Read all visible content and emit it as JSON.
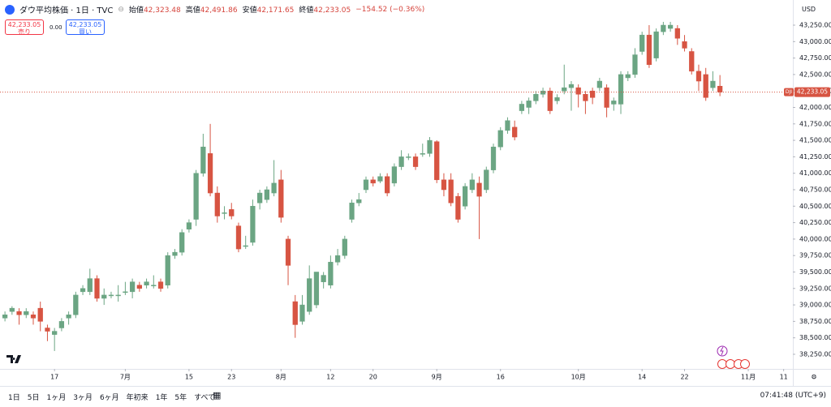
{
  "header": {
    "title": "ダウ平均株価 · 1日 · TVC",
    "ohlc": [
      {
        "label": "始値",
        "value": "42,323.48"
      },
      {
        "label": "高値",
        "value": "42,491.86"
      },
      {
        "label": "安値",
        "value": "42,171.65"
      },
      {
        "label": "終値",
        "value": "42,233.05"
      }
    ],
    "change": "−154.52 (−0.36%)"
  },
  "trade": {
    "sell_price": "42,233.05",
    "sell": "売り",
    "spread": "0.00",
    "buy_price": "42,233.05",
    "buy": "買い"
  },
  "currency": "USD",
  "toolbar": {
    "ranges": [
      "1日",
      "5日",
      "1ヶ月",
      "3ヶ月",
      "6ヶ月",
      "年初来",
      "1年",
      "5年",
      "すべて"
    ],
    "clock": "07:41:48 (UTC+9)"
  },
  "chart_data": {
    "type": "candlestick",
    "open": [
      38800,
      38900,
      38900,
      38850,
      38850,
      38950,
      38650,
      38550,
      38650,
      38800,
      38850,
      39200,
      39200,
      39400,
      39100,
      39150,
      39150,
      39200,
      39200,
      39300,
      39300,
      39300,
      39350,
      39300,
      39750,
      39800,
      40150,
      40300,
      41000,
      41300,
      40700,
      40400,
      40450,
      40200,
      39900,
      39950,
      40550,
      40600,
      40700,
      40900,
      40000,
      39050,
      38750,
      38900,
      39000,
      39350,
      39300,
      39650,
      39750,
      40300,
      40550,
      40750,
      40900,
      40880,
      40950,
      40850,
      41100,
      41250,
      41250,
      41300,
      41300,
      41480,
      40900,
      40900,
      40650,
      40500,
      40750,
      40850,
      40750,
      41050,
      41400,
      41650,
      41700,
      41950,
      42000,
      42100,
      42200,
      42250,
      42100,
      42250,
      42300,
      42300,
      42200,
      42250,
      42300,
      42300,
      42050,
      42050,
      42450,
      42500,
      42850,
      43100,
      42750,
      43150,
      43200,
      43200,
      43000,
      42850,
      42550,
      42500,
      42300,
      42323.48
    ],
    "high": [
      38900,
      38980,
      38950,
      38950,
      38900,
      39050,
      38700,
      38650,
      38800,
      38900,
      39200,
      39300,
      39550,
      39450,
      39250,
      39200,
      39300,
      39350,
      39400,
      39350,
      39400,
      39450,
      39400,
      39800,
      39850,
      40150,
      40300,
      41050,
      41600,
      41750,
      40800,
      40500,
      40550,
      40250,
      40050,
      40600,
      40750,
      40800,
      41200,
      41050,
      40050,
      39150,
      39150,
      39600,
      39500,
      39500,
      39750,
      39850,
      40050,
      40600,
      40700,
      40950,
      40950,
      41000,
      41000,
      41150,
      41350,
      41300,
      41300,
      41450,
      41550,
      41500,
      41000,
      41000,
      40700,
      40850,
      41000,
      40950,
      41100,
      41450,
      41700,
      41850,
      41800,
      42100,
      42150,
      42250,
      42300,
      42300,
      42200,
      42650,
      42400,
      42350,
      42250,
      42300,
      42450,
      42350,
      42150,
      42550,
      42550,
      42900,
      43150,
      43250,
      43200,
      43300,
      43300,
      43250,
      43100,
      42900,
      42650,
      42600,
      42550,
      42491.86
    ],
    "low": [
      38750,
      38850,
      38700,
      38800,
      38700,
      38600,
      38450,
      38300,
      38600,
      38700,
      38800,
      39150,
      39150,
      39050,
      39000,
      39100,
      39050,
      39150,
      39100,
      39200,
      39250,
      39250,
      39200,
      39250,
      39700,
      39750,
      40100,
      40200,
      40950,
      40650,
      40250,
      40300,
      40300,
      39800,
      39850,
      39900,
      40450,
      40550,
      40650,
      40250,
      39300,
      38500,
      38700,
      38850,
      38950,
      39250,
      39250,
      39600,
      39700,
      40250,
      40500,
      40700,
      40800,
      40850,
      40650,
      40800,
      41050,
      41200,
      41050,
      41250,
      41250,
      40850,
      40650,
      40500,
      40250,
      40450,
      40700,
      40000,
      40700,
      41000,
      41350,
      41600,
      41500,
      41900,
      41900,
      42050,
      42150,
      41900,
      42050,
      42200,
      41950,
      42000,
      41900,
      42050,
      42250,
      41850,
      41950,
      41900,
      42400,
      42450,
      42800,
      42600,
      42700,
      43100,
      43150,
      42950,
      42850,
      42500,
      42250,
      42100,
      42250,
      42171.65
    ],
    "close": [
      38850,
      38950,
      38850,
      38900,
      38800,
      38750,
      38600,
      38600,
      38750,
      38850,
      39150,
      39250,
      39400,
      39100,
      39150,
      39150,
      39150,
      39200,
      39350,
      39250,
      39350,
      39300,
      39250,
      39750,
      39800,
      40100,
      40250,
      41000,
      41400,
      40700,
      40350,
      40400,
      40350,
      39850,
      39900,
      40500,
      40700,
      40750,
      40850,
      40330,
      39600,
      38700,
      39000,
      39400,
      39500,
      39450,
      39650,
      39750,
      40000,
      40550,
      40600,
      40900,
      40850,
      40950,
      40700,
      41100,
      41250,
      41250,
      41100,
      41300,
      41500,
      40900,
      40750,
      40550,
      40300,
      40800,
      40900,
      40650,
      41050,
      41400,
      41650,
      41800,
      41550,
      42050,
      42100,
      42200,
      42250,
      41950,
      42150,
      42300,
      42350,
      42200,
      42100,
      42150,
      42400,
      42000,
      42100,
      42500,
      42500,
      42800,
      43100,
      42650,
      43150,
      43250,
      43250,
      43050,
      42900,
      42550,
      42400,
      42150,
      42400,
      42233.05
    ],
    "up_color": "#6ba583",
    "down_color": "#d75442",
    "xlim": [
      -0.7,
      111.3
    ],
    "xticks": [
      {
        "value": 7,
        "label": "17"
      },
      {
        "value": 17,
        "label": "7月"
      },
      {
        "value": 26,
        "label": "15"
      },
      {
        "value": 32,
        "label": "23"
      },
      {
        "value": 39,
        "label": "8月"
      },
      {
        "value": 46,
        "label": "12"
      },
      {
        "value": 52,
        "label": "20"
      },
      {
        "value": 61,
        "label": "9月"
      },
      {
        "value": 70,
        "label": "16"
      },
      {
        "value": 81,
        "label": "10月"
      },
      {
        "value": 90,
        "label": "14"
      },
      {
        "value": 96,
        "label": "22"
      },
      {
        "value": 105,
        "label": "11月"
      },
      {
        "value": 110,
        "label": "11"
      }
    ],
    "ylim": [
      38028,
      43632
    ],
    "yticks": [
      {
        "value": 38250,
        "label": "38,250.00"
      },
      {
        "value": 38500,
        "label": "38,500.00"
      },
      {
        "value": 38750,
        "label": "38,750.00"
      },
      {
        "value": 39000,
        "label": "39,000.00"
      },
      {
        "value": 39250,
        "label": "39,250.00"
      },
      {
        "value": 39500,
        "label": "39,500.00"
      },
      {
        "value": 39750,
        "label": "39,750.00"
      },
      {
        "value": 40000,
        "label": "40,000.00"
      },
      {
        "value": 40250,
        "label": "40,250.00"
      },
      {
        "value": 40500,
        "label": "40,500.00"
      },
      {
        "value": 40750,
        "label": "40,750.00"
      },
      {
        "value": 41000,
        "label": "41,000.00"
      },
      {
        "value": 41250,
        "label": "41,250.00"
      },
      {
        "value": 41500,
        "label": "41,500.00"
      },
      {
        "value": 41750,
        "label": "41,750.00"
      },
      {
        "value": 42000,
        "label": "42,000.00"
      },
      {
        "value": 42250,
        "label": "42,250.00"
      },
      {
        "value": 42500,
        "label": "42,500.00"
      },
      {
        "value": 42750,
        "label": "42,750.00"
      },
      {
        "value": 43000,
        "label": "43,000.00"
      },
      {
        "value": 43250,
        "label": "43,250.00"
      }
    ],
    "last_price": {
      "value": 42233.05,
      "label": "42,233.05"
    },
    "symbol_tag": "DJI"
  }
}
